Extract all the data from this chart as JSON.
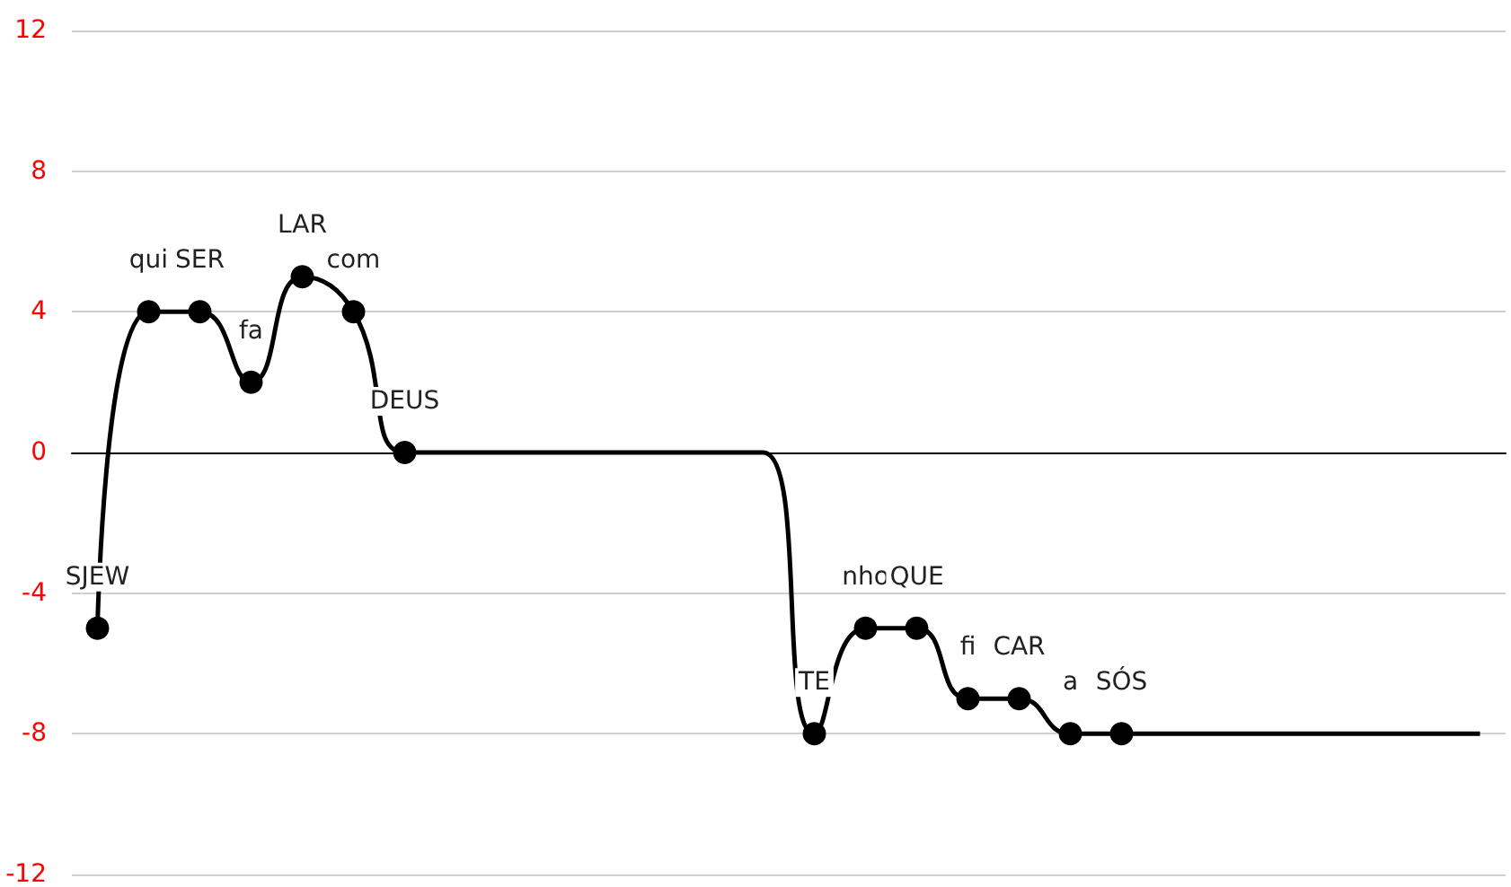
{
  "chart_data": {
    "type": "line",
    "categories": [
      null,
      null,
      null,
      null,
      null,
      null,
      null,
      null,
      null,
      null,
      null,
      null,
      null,
      null,
      null,
      null,
      null,
      null,
      null,
      null,
      null,
      null,
      null,
      null,
      null,
      null,
      null,
      null
    ],
    "series": [
      {
        "color": "#000000",
        "values": [
          -5,
          4,
          4,
          2,
          5,
          4,
          0,
          0,
          0,
          0,
          0,
          0,
          0,
          0,
          -8,
          -5,
          -5,
          -7,
          -7,
          -8,
          -8,
          -8,
          -8,
          -8,
          -8,
          -8,
          -8,
          -8
        ],
        "value_labels": [
          "SJEW",
          "qui",
          "SER",
          "fa",
          "LAR",
          "com",
          "DEUS",
          null,
          null,
          null,
          null,
          null,
          null,
          null,
          "TE",
          "nho",
          "QUE",
          "fi",
          "CAR",
          "a",
          "SÓS",
          null,
          null,
          null,
          null,
          null,
          null,
          null
        ]
      }
    ],
    "ylim": [
      -12,
      12
    ],
    "yticks": [
      -12,
      -8,
      -4,
      0,
      4,
      8,
      12
    ],
    "grid": "y",
    "marker": "circle",
    "line_style": "solid",
    "tick_labels": "y"
  }
}
